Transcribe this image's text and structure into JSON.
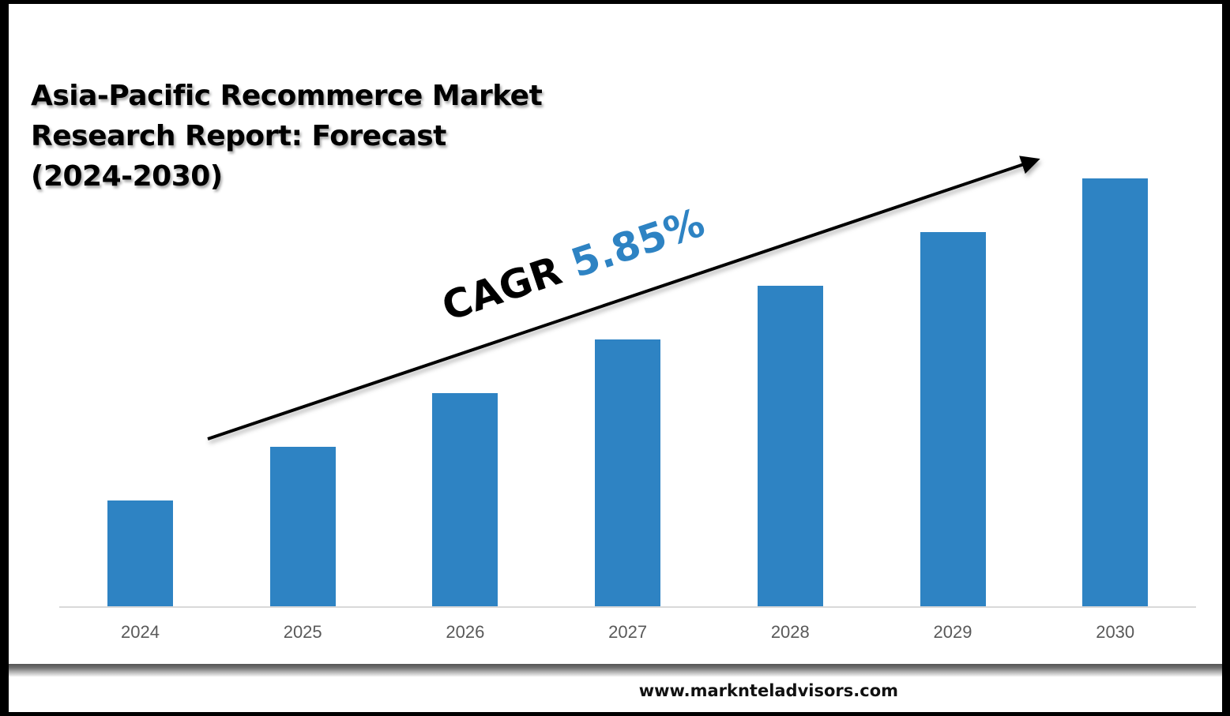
{
  "title": {
    "line1": "Asia-Pacific Recommerce Market",
    "line2": "Research Report: Forecast",
    "line3": "(2024-2030)"
  },
  "cagr": {
    "label": "CAGR",
    "value": "5.85%"
  },
  "footer": {
    "url": "www.marknteladvisors.com"
  },
  "colors": {
    "bar": "#2e83c3",
    "cagr_value": "#2e83c3",
    "axis": "#d9d9d9",
    "label": "#595959",
    "frame": "#000000"
  },
  "chart_data": {
    "type": "bar",
    "title": "Asia-Pacific Recommerce Market Research Report: Forecast (2024-2030)",
    "categories": [
      "2024",
      "2025",
      "2026",
      "2027",
      "2028",
      "2029",
      "2030"
    ],
    "values": [
      134,
      202,
      270,
      338,
      406,
      474,
      542
    ],
    "values_note": "relative bar heights (no y-axis shown)",
    "xlabel": "",
    "ylabel": "",
    "grid": false,
    "legend": null,
    "annotations": [
      {
        "type": "arrow",
        "text": "CAGR 5.85%",
        "from": "2024",
        "to": "2030"
      }
    ]
  }
}
